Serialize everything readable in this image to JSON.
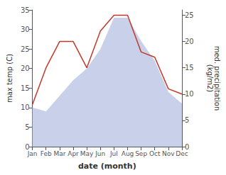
{
  "chart_data": {
    "type": "line",
    "xlabel": "date (month)",
    "ylabel": "max temp (C)",
    "y2label": "med. precipitation\n(kg/m2)",
    "categories": [
      "Jan",
      "Feb",
      "Mar",
      "Apr",
      "May",
      "Jun",
      "Jul",
      "Aug",
      "Sep",
      "Oct",
      "Nov",
      "Dec"
    ],
    "series": [
      {
        "type": "area",
        "color": "#c8d0ea",
        "axis": "y",
        "values": [
          10,
          9,
          13,
          17,
          20,
          25,
          33,
          33,
          27,
          22,
          14,
          11
        ]
      },
      {
        "type": "line",
        "color": "#c0392b",
        "axis": "y2",
        "values": [
          8,
          15,
          20,
          20,
          15,
          22,
          25,
          25,
          18,
          17,
          11,
          10
        ]
      }
    ],
    "ylim": [
      0,
      35
    ],
    "yticks": [
      0,
      5,
      10,
      15,
      20,
      25,
      30,
      35
    ],
    "y2lim": [
      0,
      26
    ],
    "y2ticks": [
      0,
      5,
      10,
      15,
      20,
      25
    ],
    "grid": false
  }
}
